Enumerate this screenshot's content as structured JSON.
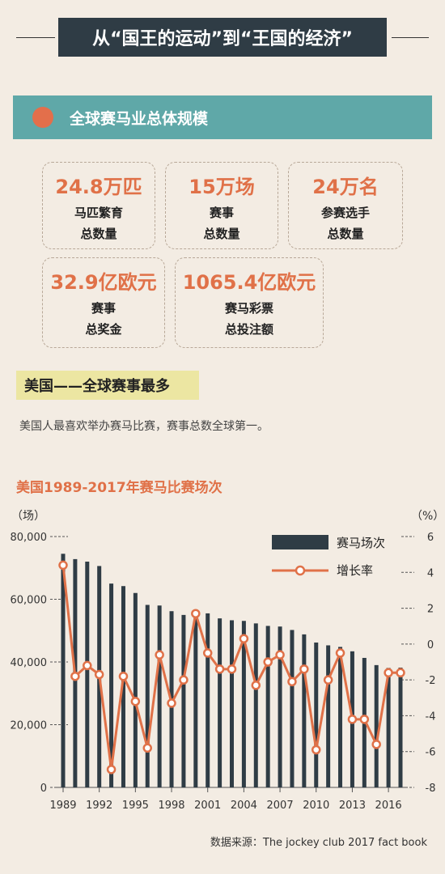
{
  "header": {
    "title": "从“国王的运动”到“王国的经济”"
  },
  "section1": {
    "title": "全球赛马业总体规模"
  },
  "stats": [
    {
      "value": "24.8万匹",
      "label1": "马匹繁育",
      "label2": "总数量"
    },
    {
      "value": "15万场",
      "label1": "赛事",
      "label2": "总数量"
    },
    {
      "value": "24万名",
      "label1": "参赛选手",
      "label2": "总数量"
    },
    {
      "value": "32.9亿欧元",
      "label1": "赛事",
      "label2": "总奖金"
    },
    {
      "value": "1065.4亿欧元",
      "label1": "赛马彩票",
      "label2": "总投注额"
    }
  ],
  "section2": {
    "title": "美国——全球赛事最多",
    "description": "美国人最喜欢举办赛马比赛，赛事总数全球第一。"
  },
  "source": "数据来源：The jockey club 2017 fact book",
  "colors": {
    "bar": "#2f3c45",
    "line": "#e07148",
    "accent": "#e07148",
    "teal": "#5fa8a8"
  },
  "chart_data": {
    "type": "bar",
    "title": "美国1989-2017年赛马比赛场次",
    "left_unit": "（场）",
    "right_unit": "（%）",
    "x": [
      1989,
      1990,
      1991,
      1992,
      1993,
      1994,
      1995,
      1996,
      1997,
      1998,
      1999,
      2000,
      2001,
      2002,
      2003,
      2004,
      2005,
      2006,
      2007,
      2008,
      2009,
      2010,
      2011,
      2012,
      2013,
      2014,
      2015,
      2016,
      2017
    ],
    "xtick_labels": [
      "1989",
      "1992",
      "1995",
      "1998",
      "2001",
      "2004",
      "2007",
      "2010",
      "2013",
      "2016"
    ],
    "y_left_ticks": [
      "0",
      "20,000",
      "40,000",
      "60,000",
      "80,000"
    ],
    "y_right_ticks": [
      "-8",
      "-6",
      "-4",
      "-2",
      "0",
      "2",
      "4",
      "6"
    ],
    "ylim_left": [
      0,
      80000
    ],
    "ylim_right": [
      -8,
      6
    ],
    "series": [
      {
        "name": "赛马场次",
        "kind": "bar",
        "values": [
          74500,
          72800,
          72000,
          70600,
          65000,
          64200,
          62000,
          58200,
          58000,
          56200,
          55000,
          56200,
          55500,
          53900,
          53300,
          53100,
          52300,
          51500,
          51300,
          50200,
          48800,
          46200,
          45300,
          44800,
          43400,
          41300,
          39000,
          38100,
          38200
        ]
      },
      {
        "name": "增长率",
        "kind": "line",
        "axis": "right",
        "values": [
          4.4,
          -1.8,
          -1.2,
          -1.7,
          -7.0,
          -1.8,
          -3.2,
          -5.8,
          -0.6,
          -3.3,
          -2.0,
          1.7,
          -0.5,
          -1.4,
          -1.4,
          0.3,
          -2.3,
          -1.0,
          -0.6,
          -2.1,
          -1.4,
          -5.9,
          -2.0,
          -0.5,
          -4.2,
          -4.2,
          -5.6,
          -1.6,
          -1.6
        ]
      }
    ]
  }
}
